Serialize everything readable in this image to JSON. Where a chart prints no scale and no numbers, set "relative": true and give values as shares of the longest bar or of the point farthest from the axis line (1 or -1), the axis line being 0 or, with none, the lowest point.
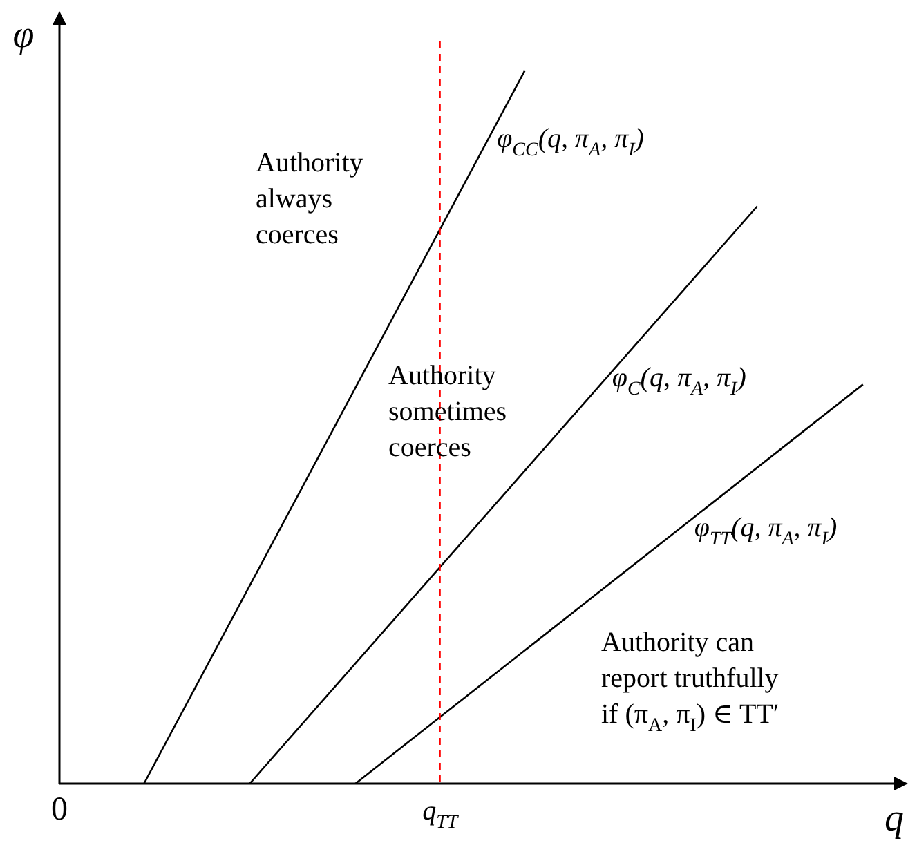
{
  "chart_data": {
    "type": "line",
    "relative": true,
    "xlabel": "q",
    "ylabel": "φ",
    "categories": [
      "0",
      null,
      null,
      null,
      null,
      null,
      null,
      null,
      null,
      null,
      null,
      null,
      null,
      null,
      null,
      null,
      null,
      null,
      "q$_{TT}$",
      null,
      null,
      null,
      null,
      null,
      null,
      null,
      null,
      null,
      null,
      null,
      null,
      null,
      null,
      null,
      null,
      null,
      null,
      null,
      null,
      null,
      null
    ],
    "series": [
      {
        "name": "φ$_{CC}$(q, π$_{A}$, π$_{I}$)",
        "color": "#000000",
        "values": [
          null,
          null,
          null,
          null,
          0,
          null,
          null,
          null,
          null,
          null,
          null,
          null,
          null,
          null,
          null,
          null,
          null,
          null,
          null,
          null,
          null,
          null,
          1,
          null,
          null,
          null,
          null,
          null,
          null,
          null,
          null,
          null,
          null,
          null,
          null,
          null,
          null,
          null,
          null,
          null,
          null
        ]
      },
      {
        "name": "φ$_{C}$(q, π$_{A}$, π$_{I}$)",
        "color": "#000000",
        "values": [
          null,
          null,
          null,
          null,
          null,
          null,
          null,
          null,
          null,
          0,
          null,
          null,
          null,
          null,
          null,
          null,
          null,
          null,
          null,
          null,
          null,
          null,
          null,
          null,
          null,
          null,
          null,
          null,
          null,
          null,
          null,
          null,
          null,
          0.81,
          null,
          null,
          null,
          null,
          null,
          null,
          null
        ]
      },
      {
        "name": "φ$_{TT}$(q, π$_{A}$, π$_{I}$)",
        "color": "#000000",
        "values": [
          null,
          null,
          null,
          null,
          null,
          null,
          null,
          null,
          null,
          null,
          null,
          null,
          null,
          null,
          0,
          null,
          null,
          null,
          null,
          null,
          null,
          null,
          null,
          null,
          null,
          null,
          null,
          null,
          null,
          null,
          null,
          null,
          null,
          null,
          null,
          null,
          null,
          null,
          0.56,
          null,
          null
        ]
      }
    ],
    "ref_lines": [
      {
        "axis": "x",
        "value": "q$_{TT}$",
        "color": "#ff0000",
        "line_style": "dashed"
      }
    ],
    "annotations": [
      "Authority\nalways\ncoerces",
      "Authority\nsometimes\ncoerces",
      "Authority can\nreport truthfully\nif (π$_{A}$, π$_{I}$) ∈ TT′"
    ],
    "grid": false,
    "legend": false,
    "marker": "none",
    "line_style": "solid"
  }
}
